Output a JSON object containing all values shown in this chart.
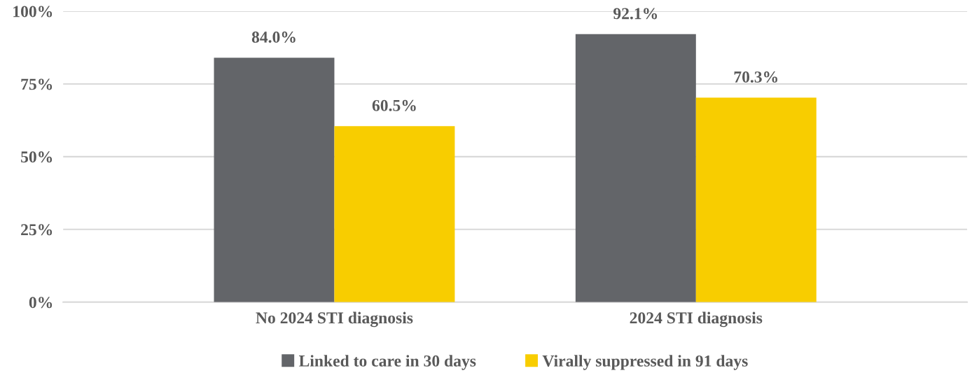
{
  "chart_data": {
    "type": "bar",
    "categories": [
      "No 2024 STI diagnosis",
      "2024 STI diagnosis"
    ],
    "series": [
      {
        "name": "Linked to care in 30 days",
        "color": "#636569",
        "values": [
          84.0,
          92.1
        ],
        "value_labels": [
          "84.0%",
          "92.1%"
        ]
      },
      {
        "name": "Virally suppressed in 91 days",
        "color": "#f8cd00",
        "values": [
          60.5,
          70.3
        ],
        "value_labels": [
          "60.5%",
          "70.3%"
        ]
      }
    ],
    "ylim": [
      0,
      100
    ],
    "yticks": [
      {
        "value": 0,
        "label": "0%"
      },
      {
        "value": 25,
        "label": "25%"
      },
      {
        "value": 50,
        "label": "50%"
      },
      {
        "value": 75,
        "label": "75%"
      },
      {
        "value": 100,
        "label": "100%"
      }
    ],
    "grid": "y",
    "legend": "bottom"
  }
}
